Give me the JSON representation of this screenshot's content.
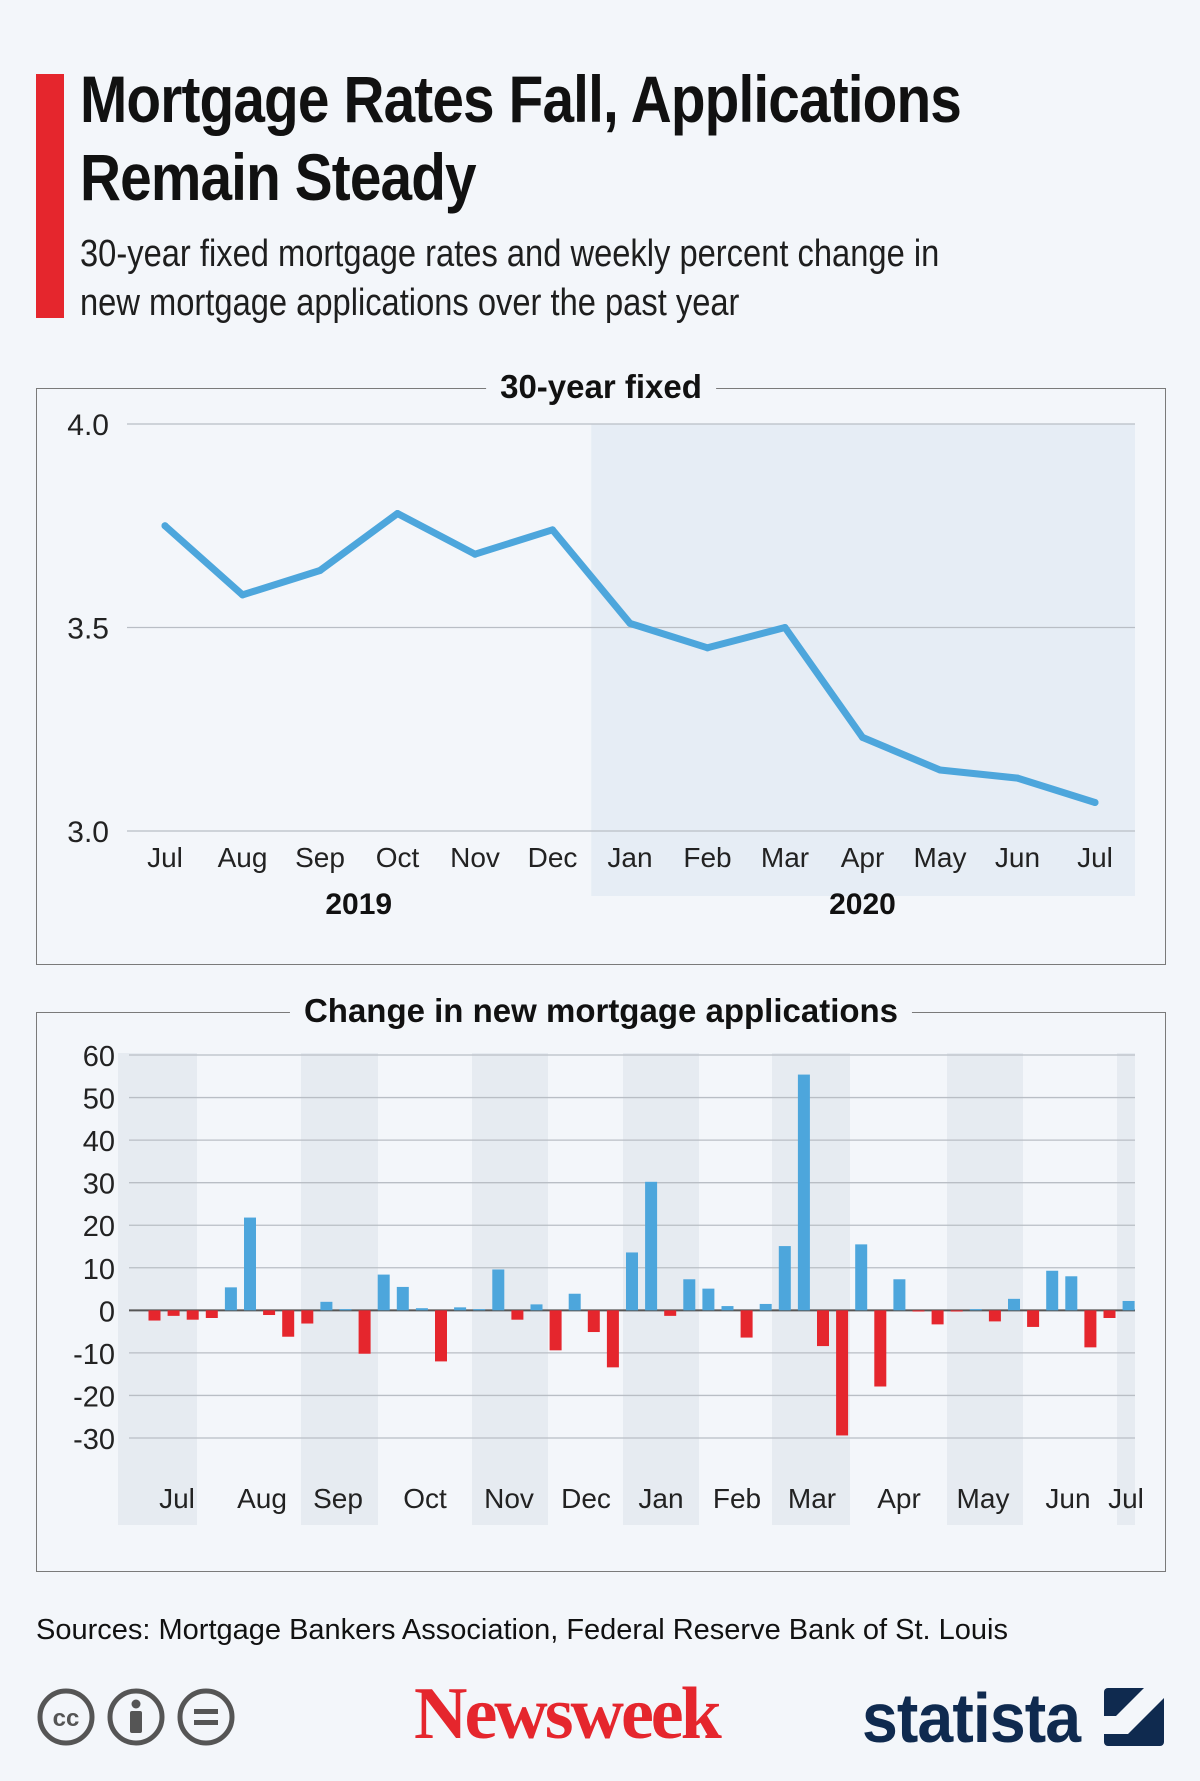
{
  "header": {
    "title": "Mortgage Rates Fall, Applications Remain Steady",
    "subtitle": "30-year fixed mortgage rates and weekly percent change in new mortgage applications over the past year"
  },
  "colors": {
    "accent": "#e5262d",
    "line": "#4da6dc",
    "positive": "#4da6dc",
    "negative": "#e5262d",
    "brand_navy": "#0f2a4f"
  },
  "chart_data": [
    {
      "type": "line",
      "title": "30-year fixed",
      "categories": [
        "Jul",
        "Aug",
        "Sep",
        "Oct",
        "Nov",
        "Dec",
        "Jan",
        "Feb",
        "Mar",
        "Apr",
        "May",
        "Jun",
        "Jul"
      ],
      "values": [
        3.75,
        3.58,
        3.64,
        3.78,
        3.68,
        3.74,
        3.51,
        3.45,
        3.5,
        3.23,
        3.15,
        3.13,
        3.07
      ],
      "year_labels": [
        "2019",
        "2020"
      ],
      "y_ticks": [
        "4.0",
        "3.5",
        "3.0"
      ],
      "ylim": [
        3.0,
        4.0
      ],
      "grid": true
    },
    {
      "type": "bar",
      "title": "Change in new mortgage applications",
      "month_labels": [
        "Jul",
        "Aug",
        "Sep",
        "Oct",
        "Nov",
        "Dec",
        "Jan",
        "Feb",
        "Mar",
        "Apr",
        "May",
        "Jun",
        "Jul"
      ],
      "values": [
        -2.4,
        -1.3,
        -2.2,
        -1.8,
        5.4,
        21.8,
        -1.1,
        -6.2,
        -3.1,
        2.0,
        0.0,
        -10.2,
        8.4,
        5.5,
        0.5,
        -12.0,
        0.7,
        0.0,
        9.6,
        -2.2,
        1.4,
        -9.4,
        3.9,
        -5.1,
        -13.4,
        13.6,
        30.2,
        -1.3,
        7.3,
        5.1,
        1.0,
        -6.4,
        1.5,
        15.1,
        55.4,
        -8.4,
        -29.4,
        15.5,
        -17.9,
        7.3,
        -0.2,
        -3.3,
        -0.1,
        0.2,
        -2.6,
        2.7,
        -3.9,
        9.3,
        8.0,
        -8.7,
        -1.8,
        2.2
      ],
      "y_ticks": [
        "60",
        "50",
        "40",
        "30",
        "20",
        "10",
        "0",
        "-10",
        "-20",
        "-30"
      ],
      "ylim": [
        -30,
        60
      ],
      "grid": true
    }
  ],
  "footer": {
    "sources": "Sources: Mortgage Bankers Association, Federal Reserve Bank of St. Louis",
    "brand_newsweek": "Newsweek",
    "brand_statista": "statista",
    "license_icons": [
      "cc-icon",
      "attribution-icon",
      "no-derivatives-icon"
    ]
  }
}
